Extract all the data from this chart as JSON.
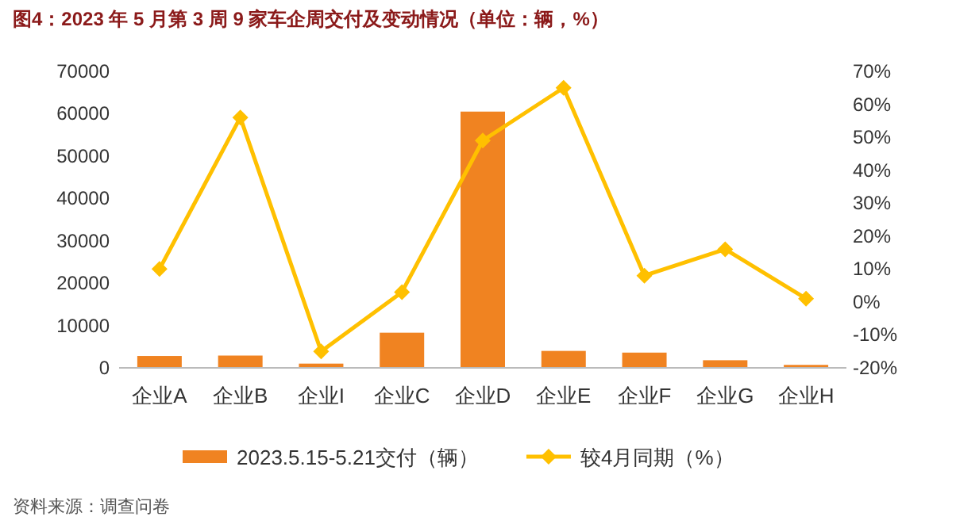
{
  "chart_data": {
    "type": "bar",
    "title": "图4：2023 年 5 月第 3 周 9 家车企周交付及变动情况（单位：辆，%）",
    "categories": [
      "企业A",
      "企业B",
      "企业I",
      "企业C",
      "企业D",
      "企业E",
      "企业F",
      "企业G",
      "企业H"
    ],
    "series": [
      {
        "name": "2023.5.15-5.21交付（辆）",
        "color": "#f08321",
        "values": [
          2800,
          2900,
          1000,
          8300,
          60500,
          4000,
          3600,
          1800,
          700
        ]
      },
      {
        "name": "较4月同期（%）",
        "type": "line",
        "axis": "y2",
        "color": "#ffc000",
        "marker": "diamond",
        "values": [
          10,
          56,
          -15,
          3,
          49,
          65,
          8,
          16,
          1
        ]
      }
    ],
    "ylim": [
      0,
      70000
    ],
    "yticks": [
      0,
      10000,
      20000,
      30000,
      40000,
      50000,
      60000,
      70000
    ],
    "y2lim": [
      -20,
      70
    ],
    "y2ticks": [
      {
        "value": -20,
        "label": "-20%"
      },
      {
        "value": -10,
        "label": "-10%"
      },
      {
        "value": 0,
        "label": "0%"
      },
      {
        "value": 10,
        "label": "10%"
      },
      {
        "value": 20,
        "label": "20%"
      },
      {
        "value": 30,
        "label": "30%"
      },
      {
        "value": 40,
        "label": "40%"
      },
      {
        "value": 50,
        "label": "50%"
      },
      {
        "value": 60,
        "label": "60%"
      },
      {
        "value": 70,
        "label": "70%"
      }
    ],
    "legend": "bottom",
    "grid": false,
    "annotations": [
      "资料来源：调查问卷"
    ]
  }
}
